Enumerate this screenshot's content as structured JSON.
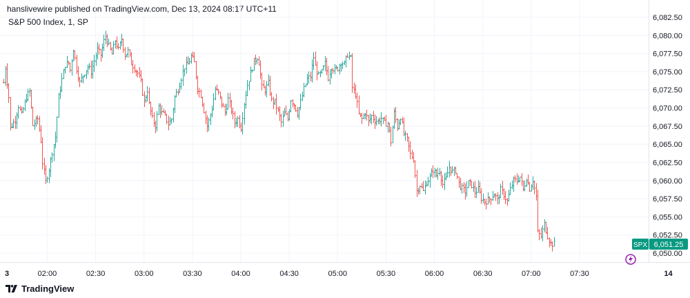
{
  "header": {
    "publisher_line": "hanslivewire published on TradingView.com, Dec 13, 2024 08:17 UTC+11",
    "symbol_line": "S&P 500 Index, 1, SP"
  },
  "footer": {
    "brand": "TradingView"
  },
  "colors": {
    "up": "#26a69a",
    "down": "#ef5350",
    "badge": "#089981",
    "grid": "#f0f3fa",
    "axis_text": "#131722"
  },
  "price_badge": {
    "symbol": "SPX",
    "price": "6,051.25",
    "value": 6051.25
  },
  "chart_data": {
    "type": "ohlc",
    "title": "S&P 500 Index, 1, SP",
    "ylim": [
      6048.6,
      6083.2
    ],
    "y_ticks": [
      6050.0,
      6052.5,
      6055.0,
      6057.5,
      6060.0,
      6062.5,
      6065.0,
      6067.5,
      6070.0,
      6072.5,
      6075.0,
      6077.5,
      6080.0,
      6082.5
    ],
    "y_tick_labels": [
      "6,050.00",
      "6,052.50",
      "6,055.00",
      "6,057.50",
      "6,060.00",
      "6,062.50",
      "6,065.00",
      "6,067.50",
      "6,070.00",
      "6,072.50",
      "6,075.00",
      "6,077.50",
      "6,080.00",
      "6,082.50"
    ],
    "x_tick_labels": [
      "3",
      "02:00",
      "02:30",
      "03:00",
      "03:30",
      "04:00",
      "04:30",
      "05:00",
      "05:30",
      "06:00",
      "06:30",
      "07:00",
      "07:30",
      "14"
    ],
    "x_tick_minutes": [
      95,
      120,
      150,
      180,
      210,
      240,
      270,
      300,
      330,
      360,
      390,
      420,
      450,
      505
    ],
    "x_range_minutes": [
      92,
      499
    ],
    "price_path": [
      [
        93,
        6073.5
      ],
      [
        94,
        6075.6
      ],
      [
        96,
        6071.5
      ],
      [
        97,
        6067.2
      ],
      [
        100,
        6068.4
      ],
      [
        102,
        6070.3
      ],
      [
        104,
        6069.0
      ],
      [
        107,
        6071.5
      ],
      [
        109,
        6072.3
      ],
      [
        111,
        6067.6
      ],
      [
        114,
        6068.5
      ],
      [
        116,
        6065.5
      ],
      [
        117,
        6062.5
      ],
      [
        119,
        6059.8
      ],
      [
        121,
        6061.6
      ],
      [
        123,
        6064.0
      ],
      [
        125,
        6066.0
      ],
      [
        127,
        6071.5
      ],
      [
        129,
        6073.9
      ],
      [
        131,
        6076.0
      ],
      [
        133,
        6076.2
      ],
      [
        134,
        6075.2
      ],
      [
        136,
        6078.2
      ],
      [
        138,
        6075.4
      ],
      [
        140,
        6073.5
      ],
      [
        142,
        6074.5
      ],
      [
        145,
        6075.7
      ],
      [
        147,
        6075.0
      ],
      [
        149,
        6076.5
      ],
      [
        151,
        6078.0
      ],
      [
        153,
        6077.3
      ],
      [
        155,
        6079.2
      ],
      [
        156,
        6079.9
      ],
      [
        158,
        6078.5
      ],
      [
        160,
        6077.4
      ],
      [
        162,
        6079.3
      ],
      [
        164,
        6078.0
      ],
      [
        166,
        6079.5
      ],
      [
        168,
        6077.3
      ],
      [
        170,
        6077.8
      ],
      [
        172,
        6076.2
      ],
      [
        174,
        6075.5
      ],
      [
        176,
        6074.8
      ],
      [
        178,
        6073.5
      ],
      [
        180,
        6070.8
      ],
      [
        182,
        6072.5
      ],
      [
        183,
        6070.5
      ],
      [
        185,
        6068.5
      ],
      [
        187,
        6067.6
      ],
      [
        189,
        6070.2
      ],
      [
        191,
        6069.3
      ],
      [
        193,
        6068.8
      ],
      [
        195,
        6067.8
      ],
      [
        197,
        6068.5
      ],
      [
        199,
        6071.5
      ],
      [
        201,
        6072.6
      ],
      [
        203,
        6074.2
      ],
      [
        205,
        6075.7
      ],
      [
        207,
        6076.0
      ],
      [
        209,
        6077.1
      ],
      [
        211,
        6076.2
      ],
      [
        213,
        6072.7
      ],
      [
        215,
        6071.8
      ],
      [
        217,
        6069.7
      ],
      [
        219,
        6067.5
      ],
      [
        220,
        6068.2
      ],
      [
        222,
        6070.0
      ],
      [
        224,
        6072.6
      ],
      [
        226,
        6072.0
      ],
      [
        228,
        6070.6
      ],
      [
        230,
        6069.4
      ],
      [
        232,
        6071.2
      ],
      [
        234,
        6069.7
      ],
      [
        236,
        6068.0
      ],
      [
        238,
        6068.5
      ],
      [
        240,
        6067.3
      ],
      [
        242,
        6070.7
      ],
      [
        244,
        6073.2
      ],
      [
        246,
        6074.8
      ],
      [
        248,
        6076.4
      ],
      [
        250,
        6077.0
      ],
      [
        251,
        6076.3
      ],
      [
        253,
        6072.8
      ],
      [
        255,
        6072.5
      ],
      [
        257,
        6073.4
      ],
      [
        259,
        6071.0
      ],
      [
        261,
        6070.8
      ],
      [
        263,
        6069.5
      ],
      [
        265,
        6068.0
      ],
      [
        267,
        6069.3
      ],
      [
        269,
        6068.5
      ],
      [
        271,
        6071.2
      ],
      [
        273,
        6070.5
      ],
      [
        275,
        6069.3
      ],
      [
        277,
        6070.8
      ],
      [
        279,
        6072.6
      ],
      [
        281,
        6074.0
      ],
      [
        283,
        6074.3
      ],
      [
        285,
        6077.0
      ],
      [
        286,
        6075.7
      ],
      [
        288,
        6074.4
      ],
      [
        290,
        6074.9
      ],
      [
        292,
        6076.1
      ],
      [
        294,
        6074.2
      ],
      [
        296,
        6075.7
      ],
      [
        298,
        6075.2
      ],
      [
        300,
        6075.5
      ],
      [
        302,
        6076.4
      ],
      [
        304,
        6076.0
      ],
      [
        306,
        6077.4
      ],
      [
        308,
        6076.8
      ],
      [
        309,
        6072.8
      ],
      [
        311,
        6071.9
      ],
      [
        313,
        6069.1
      ],
      [
        315,
        6068.5
      ],
      [
        317,
        6069.4
      ],
      [
        319,
        6068.1
      ],
      [
        321,
        6068.9
      ],
      [
        323,
        6068.3
      ],
      [
        325,
        6068.2
      ],
      [
        327,
        6068.6
      ],
      [
        329,
        6067.9
      ],
      [
        331,
        6067.9
      ],
      [
        333,
        6065.4
      ],
      [
        335,
        6069.3
      ],
      [
        337,
        6067.4
      ],
      [
        339,
        6068.8
      ],
      [
        341,
        6066.4
      ],
      [
        343,
        6065.6
      ],
      [
        345,
        6063.6
      ],
      [
        347,
        6063.0
      ],
      [
        349,
        6058.6
      ],
      [
        351,
        6059.4
      ],
      [
        353,
        6058.5
      ],
      [
        355,
        6059.8
      ],
      [
        357,
        6060.4
      ],
      [
        359,
        6061.5
      ],
      [
        361,
        6060.7
      ],
      [
        363,
        6061.4
      ],
      [
        365,
        6059.5
      ],
      [
        367,
        6060.2
      ],
      [
        369,
        6061.9
      ],
      [
        371,
        6061.2
      ],
      [
        373,
        6061.4
      ],
      [
        375,
        6059.6
      ],
      [
        377,
        6058.9
      ],
      [
        379,
        6058.5
      ],
      [
        381,
        6059.7
      ],
      [
        383,
        6059.4
      ],
      [
        385,
        6058.4
      ],
      [
        387,
        6058.8
      ],
      [
        389,
        6057.6
      ],
      [
        391,
        6057.1
      ],
      [
        393,
        6057.3
      ],
      [
        395,
        6057.7
      ],
      [
        397,
        6058.2
      ],
      [
        399,
        6057.3
      ],
      [
        401,
        6058.7
      ],
      [
        403,
        6058.1
      ],
      [
        405,
        6057.1
      ],
      [
        407,
        6058.8
      ],
      [
        409,
        6060.0
      ],
      [
        411,
        6060.0
      ],
      [
        413,
        6060.5
      ],
      [
        415,
        6058.7
      ],
      [
        417,
        6060.4
      ],
      [
        419,
        6058.9
      ],
      [
        421,
        6060.1
      ],
      [
        423,
        6057.8
      ],
      [
        424,
        6052.8
      ],
      [
        426,
        6052.3
      ],
      [
        428,
        6054.0
      ],
      [
        430,
        6052.4
      ],
      [
        432,
        6051.3
      ],
      [
        434,
        6051.25
      ]
    ]
  }
}
